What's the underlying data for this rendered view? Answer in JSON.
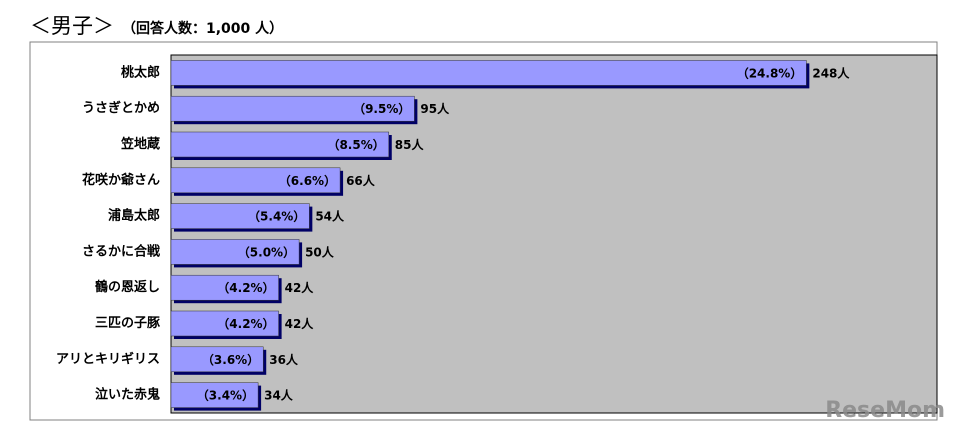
{
  "chart_data": {
    "type": "hbar",
    "title": "＜男子＞",
    "subtitle": "（回答人数：1,000 人）",
    "categories": [
      "桃太郎",
      "うさぎとかめ",
      "笠地蔵",
      "花咲か爺さん",
      "浦島太郎",
      "さるかに合戦",
      "鶴の恩返し",
      "三匹の子豚",
      "アリとキリギリス",
      "泣いた赤鬼"
    ],
    "values": [
      248,
      95,
      85,
      66,
      54,
      50,
      42,
      42,
      36,
      34
    ],
    "value_labels": [
      "248人",
      "95人",
      "85人",
      "66人",
      "54人",
      "50人",
      "42人",
      "42人",
      "36人",
      "34人"
    ],
    "percent_labels": [
      "（24.8%）",
      "（9.5%）",
      "（8.5%）",
      "（6.6%）",
      "（5.4%）",
      "（5.0%）",
      "（4.2%）",
      "（4.2%）",
      "（3.6%）",
      "（3.4%）"
    ],
    "xlim": [
      0,
      299
    ],
    "color": "#9999ff",
    "shadow_color": "#000066",
    "plot_background": "#c0c0c0",
    "watermark": "ReseMom"
  }
}
